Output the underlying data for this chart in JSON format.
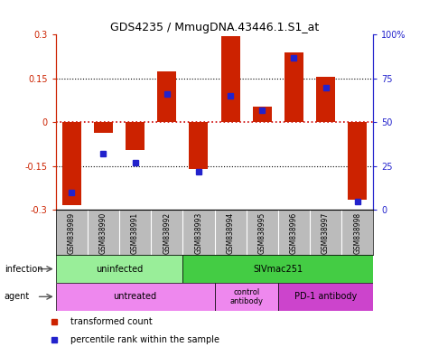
{
  "title": "GDS4235 / MmugDNA.43446.1.S1_at",
  "samples": [
    "GSM838989",
    "GSM838990",
    "GSM838991",
    "GSM838992",
    "GSM838993",
    "GSM838994",
    "GSM838995",
    "GSM838996",
    "GSM838997",
    "GSM838998"
  ],
  "red_values": [
    -0.285,
    -0.035,
    -0.095,
    0.175,
    -0.16,
    0.295,
    0.055,
    0.24,
    0.155,
    -0.265
  ],
  "blue_values": [
    0.1,
    0.32,
    0.27,
    0.66,
    0.22,
    0.65,
    0.57,
    0.87,
    0.7,
    0.05
  ],
  "ylim": [
    -0.3,
    0.3
  ],
  "yticks_left": [
    -0.3,
    -0.15,
    0,
    0.15,
    0.3
  ],
  "yticks_right": [
    0,
    25,
    50,
    75,
    100
  ],
  "dotted_lines": [
    -0.15,
    0,
    0.15
  ],
  "red_color": "#cc2200",
  "blue_color": "#2222cc",
  "bar_width": 0.6,
  "infection_row_color_light": "#99ee99",
  "infection_row_color_dark": "#44cc44",
  "agent_row_color_light": "#ee88ee",
  "agent_row_color_dark": "#cc44cc",
  "legend_red_label": "transformed count",
  "legend_blue_label": "percentile rank within the sample",
  "row_label_infection": "infection",
  "row_label_agent": "agent",
  "bg_color": "#ffffff",
  "sample_row_bg": "#bbbbbb"
}
